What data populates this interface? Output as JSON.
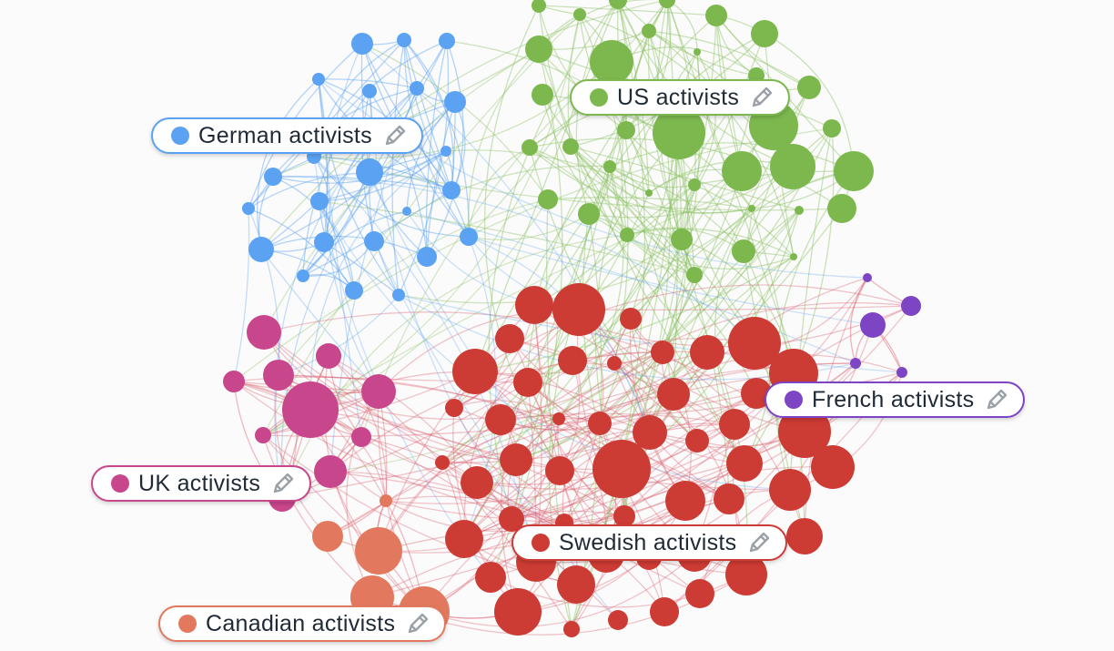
{
  "colors": {
    "german": "#5ba2f2",
    "us": "#7cb84e",
    "french": "#7d44c4",
    "uk": "#c8468c",
    "swedish": "#cc3b34",
    "canadian": "#e2795e",
    "edge_german": "#5ba2f2",
    "edge_us": "#8cc063",
    "edge_red": "#d95a6a",
    "pencil": "#9aa1a7"
  },
  "labels": {
    "german": {
      "text": "German activists",
      "icon": "pencil-edit-icon"
    },
    "us": {
      "text": "US activists",
      "icon": "pencil-edit-icon"
    },
    "french": {
      "text": "French activists",
      "icon": "pencil-edit-icon"
    },
    "uk": {
      "text": "UK activists",
      "icon": "pencil-edit-icon"
    },
    "swedish": {
      "text": "Swedish activists",
      "icon": "pencil-edit-icon"
    },
    "canadian": {
      "text": "Canadian activists",
      "icon": "pencil-edit-icon"
    }
  }
}
